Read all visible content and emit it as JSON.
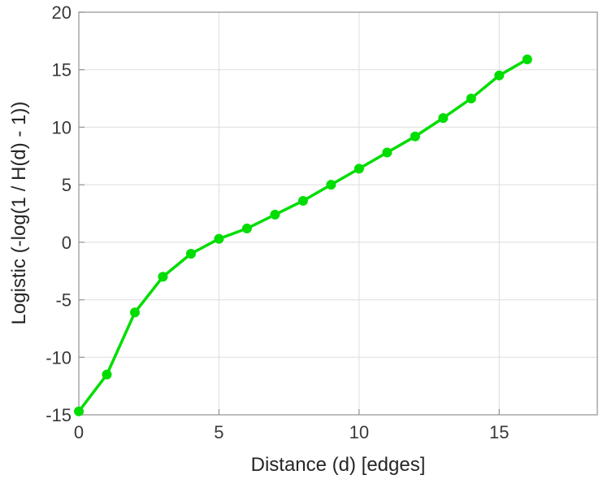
{
  "figure": {
    "background": "#ffffff"
  },
  "chart_data": {
    "type": "line",
    "title": "",
    "xlabel": "Distance (d) [edges]",
    "ylabel": "Logistic (-log(1 / H(d) - 1))",
    "x": [
      0,
      1,
      2,
      3,
      4,
      5,
      6,
      7,
      8,
      9,
      10,
      11,
      12,
      13,
      14,
      15,
      16
    ],
    "y": [
      -14.7,
      -11.5,
      -6.1,
      -3.0,
      -1.0,
      0.3,
      1.2,
      2.4,
      3.6,
      5.0,
      6.4,
      7.8,
      9.2,
      10.8,
      12.5,
      14.5,
      15.9
    ],
    "xlim": [
      0,
      18.5
    ],
    "ylim": [
      -15,
      20
    ],
    "xticks": [
      0,
      5,
      10,
      15
    ],
    "yticks": [
      -15,
      -10,
      -5,
      0,
      5,
      10,
      15,
      20
    ],
    "grid": true,
    "legend": null,
    "line_color": "#00dd00",
    "marker": "circle",
    "marker_size": 5.5,
    "line_width": 3.5,
    "grid_color": "#dedede",
    "axis_color": "#999999",
    "tick_label_color": "#3a3a3a",
    "tick_font_size": 22
  }
}
